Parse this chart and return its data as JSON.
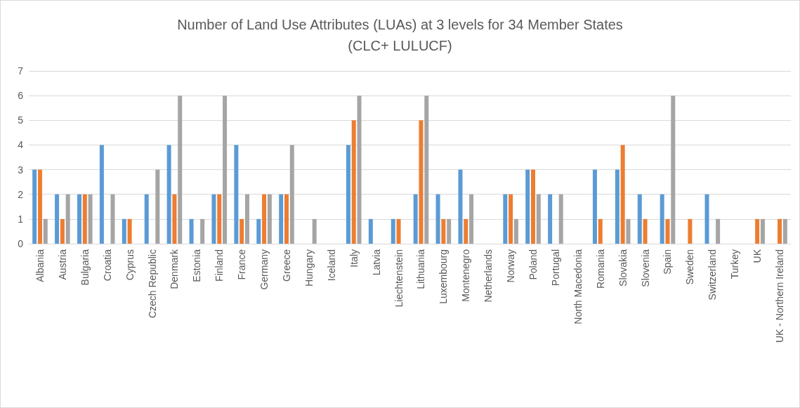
{
  "chart_data": {
    "type": "bar",
    "title": "Number of Land Use Attributes (LUAs) at 3 levels for 34 Member States\n(CLC+ LULUCF)",
    "categories": [
      "Albania",
      "Austria",
      "Bulgaria",
      "Croatia",
      "Cyprus",
      "Czech Republic",
      "Denmark",
      "Estonia",
      "Finland",
      "France",
      "Germany",
      "Greece",
      "Hungary",
      "Iceland",
      "Italy",
      "Latvia",
      "Liechtenstein",
      "Lithuania",
      "Luxembourg",
      "Montenegro",
      "Netherlands",
      "Norway",
      "Poland",
      "Portugal",
      "North Macedonia",
      "Romania",
      "Slovakia",
      "Slovenia",
      "Spain",
      "Sweden",
      "Switzerland",
      "Turkey",
      "UK",
      "UK - Northern Ireland"
    ],
    "series": [
      {
        "color": "#5b9bd5",
        "values": [
          3,
          2,
          2,
          4,
          1,
          2,
          4,
          1,
          2,
          4,
          1,
          2,
          0,
          0,
          4,
          1,
          1,
          2,
          2,
          3,
          0,
          2,
          3,
          2,
          0,
          3,
          3,
          2,
          2,
          0,
          2,
          0,
          0,
          0
        ]
      },
      {
        "color": "#ed7d31",
        "values": [
          3,
          1,
          2,
          0,
          1,
          0,
          2,
          0,
          2,
          1,
          2,
          2,
          0,
          0,
          5,
          0,
          1,
          5,
          1,
          1,
          0,
          2,
          3,
          0,
          0,
          1,
          4,
          1,
          1,
          1,
          0,
          0,
          1,
          1
        ]
      },
      {
        "color": "#a5a5a5",
        "values": [
          1,
          2,
          2,
          2,
          0,
          3,
          6,
          1,
          6,
          2,
          2,
          4,
          1,
          0,
          6,
          0,
          0,
          6,
          1,
          2,
          0,
          1,
          2,
          2,
          0,
          0,
          1,
          0,
          6,
          0,
          1,
          0,
          1,
          1
        ]
      }
    ],
    "ylim": [
      0,
      7
    ],
    "yticks": [
      0,
      1,
      2,
      3,
      4,
      5,
      6,
      7
    ],
    "grid": "y"
  }
}
